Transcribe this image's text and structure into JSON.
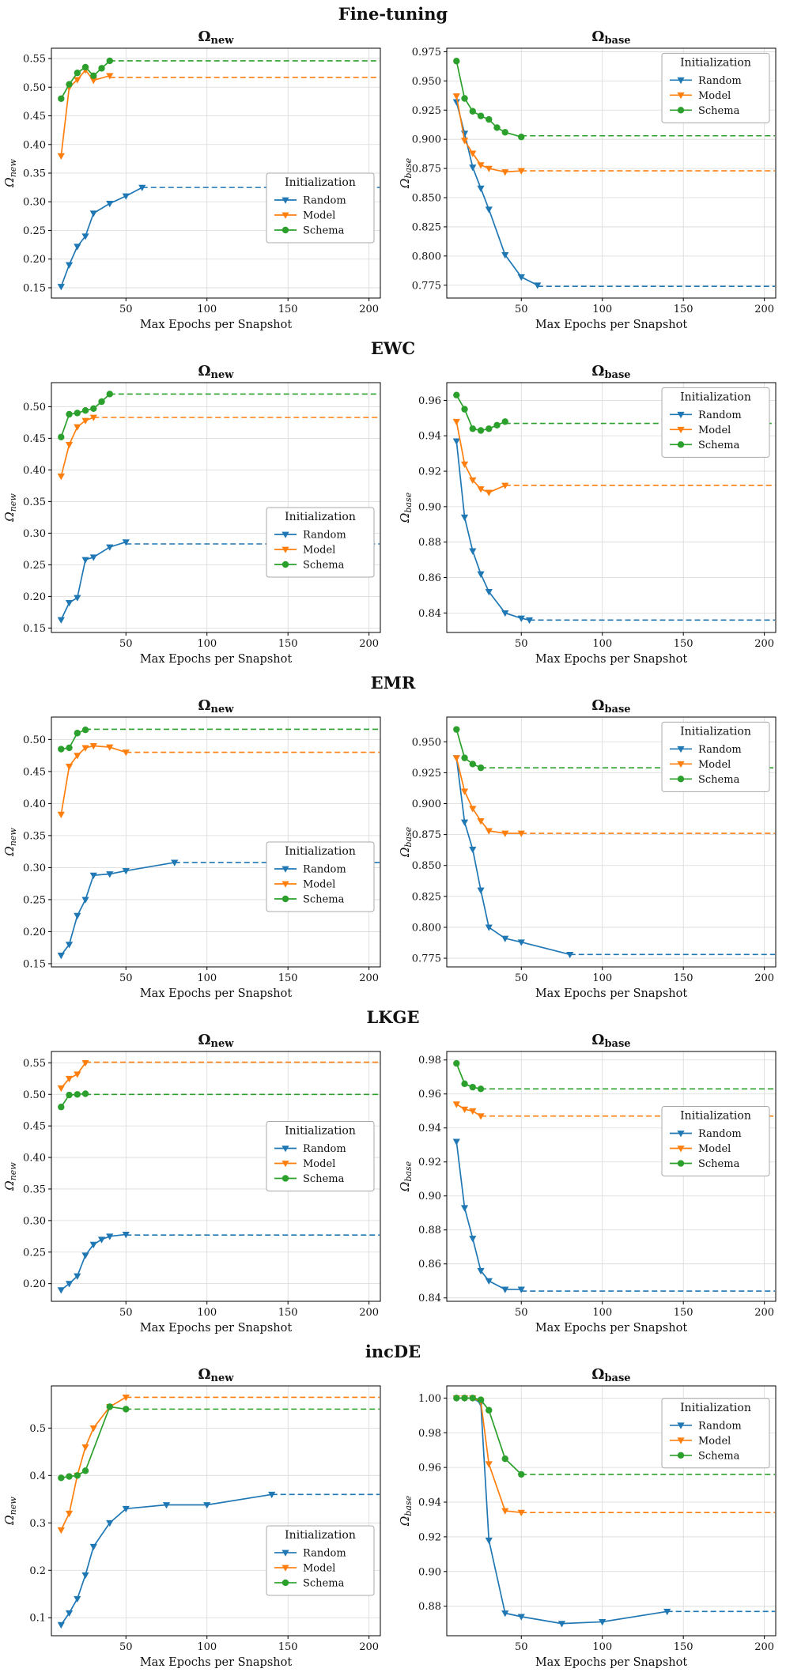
{
  "figure": {
    "background": "#ffffff",
    "xlabel": "Max Epochs per Snapshot",
    "legend_title": "Initialization",
    "xlim": [
      4,
      207
    ],
    "xticks": [
      50,
      100,
      150,
      200
    ]
  },
  "series_style": {
    "Random": {
      "color": "#1f77b4",
      "marker": "triangle-down"
    },
    "Model": {
      "color": "#ff7f0e",
      "marker": "triangle-down"
    },
    "Schema": {
      "color": "#2ca02c",
      "marker": "circle"
    }
  },
  "chart_data": [
    {
      "method": "Fine-tuning",
      "charts": [
        {
          "type": "line",
          "sub": "new",
          "ylim": [
            0.132,
            0.568
          ],
          "ydec": 2,
          "yticks": [
            0.15,
            0.2,
            0.25,
            0.3,
            0.35,
            0.4,
            0.45,
            0.5,
            0.55
          ],
          "legend_y_frac": 0.5,
          "series": [
            {
              "name": "Random",
              "x": [
                10,
                15,
                20,
                25,
                30,
                40,
                50,
                60
              ],
              "y": [
                0.152,
                0.19,
                0.222,
                0.24,
                0.28,
                0.297,
                0.31,
                0.325
              ],
              "final": 0.325
            },
            {
              "name": "Model",
              "x": [
                10,
                15,
                20,
                25,
                30,
                40
              ],
              "y": [
                0.38,
                0.5,
                0.513,
                0.53,
                0.512,
                0.52
              ],
              "final": 0.517
            },
            {
              "name": "Schema",
              "x": [
                10,
                15,
                20,
                25,
                30,
                35,
                40
              ],
              "y": [
                0.48,
                0.505,
                0.525,
                0.535,
                0.52,
                0.533,
                0.546
              ],
              "final": 0.546
            }
          ]
        },
        {
          "type": "line",
          "sub": "base",
          "ylim": [
            0.764,
            0.978
          ],
          "ydec": 3,
          "yticks": [
            0.775,
            0.8,
            0.825,
            0.85,
            0.875,
            0.9,
            0.925,
            0.95,
            0.975
          ],
          "legend_y_frac": 0.02,
          "series": [
            {
              "name": "Random",
              "x": [
                10,
                15,
                20,
                25,
                30,
                40,
                50,
                60
              ],
              "y": [
                0.932,
                0.905,
                0.876,
                0.858,
                0.84,
                0.801,
                0.782,
                0.775
              ],
              "final": 0.774
            },
            {
              "name": "Model",
              "x": [
                10,
                15,
                20,
                25,
                30,
                40,
                50
              ],
              "y": [
                0.937,
                0.899,
                0.888,
                0.878,
                0.875,
                0.872,
                0.873
              ],
              "final": 0.873
            },
            {
              "name": "Schema",
              "x": [
                10,
                15,
                20,
                25,
                30,
                35,
                40,
                50
              ],
              "y": [
                0.967,
                0.935,
                0.924,
                0.92,
                0.917,
                0.91,
                0.906,
                0.902
              ],
              "final": 0.903
            }
          ]
        }
      ]
    },
    {
      "method": "EWC",
      "charts": [
        {
          "type": "line",
          "sub": "new",
          "ylim": [
            0.143,
            0.538
          ],
          "ydec": 2,
          "yticks": [
            0.15,
            0.2,
            0.25,
            0.3,
            0.35,
            0.4,
            0.45,
            0.5
          ],
          "legend_y_frac": 0.5,
          "series": [
            {
              "name": "Random",
              "x": [
                10,
                15,
                20,
                25,
                30,
                40,
                50
              ],
              "y": [
                0.163,
                0.19,
                0.198,
                0.258,
                0.262,
                0.278,
                0.286
              ],
              "final": 0.283
            },
            {
              "name": "Model",
              "x": [
                10,
                15,
                20,
                25,
                30
              ],
              "y": [
                0.39,
                0.44,
                0.468,
                0.478,
                0.483
              ],
              "final": 0.483
            },
            {
              "name": "Schema",
              "x": [
                10,
                15,
                20,
                25,
                30,
                35,
                40
              ],
              "y": [
                0.452,
                0.488,
                0.49,
                0.494,
                0.497,
                0.508,
                0.52
              ],
              "final": 0.52
            }
          ]
        },
        {
          "type": "line",
          "sub": "base",
          "ylim": [
            0.829,
            0.97
          ],
          "ydec": 2,
          "yticks": [
            0.84,
            0.86,
            0.88,
            0.9,
            0.92,
            0.94,
            0.96
          ],
          "legend_y_frac": 0.02,
          "series": [
            {
              "name": "Random",
              "x": [
                10,
                15,
                20,
                25,
                30,
                40,
                50,
                55
              ],
              "y": [
                0.937,
                0.894,
                0.875,
                0.862,
                0.852,
                0.84,
                0.837,
                0.836
              ],
              "final": 0.836
            },
            {
              "name": "Model",
              "x": [
                10,
                15,
                20,
                25,
                30,
                40
              ],
              "y": [
                0.948,
                0.924,
                0.915,
                0.91,
                0.908,
                0.912
              ],
              "final": 0.912
            },
            {
              "name": "Schema",
              "x": [
                10,
                15,
                20,
                25,
                30,
                35,
                40
              ],
              "y": [
                0.963,
                0.955,
                0.944,
                0.943,
                0.944,
                0.946,
                0.948
              ],
              "final": 0.947
            }
          ]
        }
      ]
    },
    {
      "method": "EMR",
      "charts": [
        {
          "type": "line",
          "sub": "new",
          "ylim": [
            0.145,
            0.535
          ],
          "ydec": 2,
          "yticks": [
            0.15,
            0.2,
            0.25,
            0.3,
            0.35,
            0.4,
            0.45,
            0.5
          ],
          "legend_y_frac": 0.5,
          "series": [
            {
              "name": "Random",
              "x": [
                10,
                15,
                20,
                25,
                30,
                40,
                50,
                80
              ],
              "y": [
                0.163,
                0.18,
                0.225,
                0.25,
                0.288,
                0.29,
                0.295,
                0.308
              ],
              "final": 0.308
            },
            {
              "name": "Model",
              "x": [
                10,
                15,
                20,
                25,
                30,
                40,
                50
              ],
              "y": [
                0.383,
                0.458,
                0.475,
                0.487,
                0.49,
                0.488,
                0.48
              ],
              "final": 0.48
            },
            {
              "name": "Schema",
              "x": [
                10,
                15,
                20,
                25
              ],
              "y": [
                0.485,
                0.487,
                0.51,
                0.515
              ],
              "final": 0.516
            }
          ]
        },
        {
          "type": "line",
          "sub": "base",
          "ylim": [
            0.768,
            0.97
          ],
          "ydec": 3,
          "yticks": [
            0.775,
            0.8,
            0.825,
            0.85,
            0.875,
            0.9,
            0.925,
            0.95
          ],
          "legend_y_frac": 0.02,
          "series": [
            {
              "name": "Random",
              "x": [
                10,
                15,
                20,
                25,
                30,
                40,
                50,
                80
              ],
              "y": [
                0.937,
                0.885,
                0.863,
                0.83,
                0.8,
                0.791,
                0.788,
                0.778
              ],
              "final": 0.778
            },
            {
              "name": "Model",
              "x": [
                10,
                15,
                20,
                25,
                30,
                40,
                50
              ],
              "y": [
                0.937,
                0.91,
                0.896,
                0.886,
                0.878,
                0.876,
                0.876
              ],
              "final": 0.876
            },
            {
              "name": "Schema",
              "x": [
                10,
                15,
                20,
                25
              ],
              "y": [
                0.96,
                0.937,
                0.932,
                0.929
              ],
              "final": 0.929
            }
          ]
        }
      ]
    },
    {
      "method": "LKGE",
      "charts": [
        {
          "type": "line",
          "sub": "new",
          "ylim": [
            0.172,
            0.568
          ],
          "ydec": 2,
          "yticks": [
            0.2,
            0.25,
            0.3,
            0.35,
            0.4,
            0.45,
            0.5,
            0.55
          ],
          "legend_y_frac": 0.28,
          "series": [
            {
              "name": "Random",
              "x": [
                10,
                15,
                20,
                25,
                30,
                35,
                40,
                50
              ],
              "y": [
                0.19,
                0.2,
                0.212,
                0.245,
                0.262,
                0.27,
                0.275,
                0.278
              ],
              "final": 0.277
            },
            {
              "name": "Model",
              "x": [
                10,
                15,
                20,
                25
              ],
              "y": [
                0.51,
                0.525,
                0.532,
                0.55
              ],
              "final": 0.551
            },
            {
              "name": "Schema",
              "x": [
                10,
                15,
                20,
                25
              ],
              "y": [
                0.48,
                0.499,
                0.5,
                0.501
              ],
              "final": 0.5
            }
          ]
        },
        {
          "type": "line",
          "sub": "base",
          "ylim": [
            0.838,
            0.985
          ],
          "ydec": 2,
          "yticks": [
            0.84,
            0.86,
            0.88,
            0.9,
            0.92,
            0.94,
            0.96,
            0.98
          ],
          "legend_y_frac": 0.22,
          "series": [
            {
              "name": "Random",
              "x": [
                10,
                15,
                20,
                25,
                30,
                40,
                50
              ],
              "y": [
                0.932,
                0.893,
                0.875,
                0.856,
                0.85,
                0.845,
                0.845
              ],
              "final": 0.844
            },
            {
              "name": "Model",
              "x": [
                10,
                15,
                20,
                25
              ],
              "y": [
                0.954,
                0.951,
                0.95,
                0.947
              ],
              "final": 0.947
            },
            {
              "name": "Schema",
              "x": [
                10,
                15,
                20,
                25
              ],
              "y": [
                0.978,
                0.966,
                0.964,
                0.963
              ],
              "final": 0.963
            }
          ]
        }
      ]
    },
    {
      "method": "incDE",
      "charts": [
        {
          "type": "line",
          "sub": "new",
          "ylim": [
            0.062,
            0.589
          ],
          "ydec": 1,
          "yticks": [
            0.1,
            0.2,
            0.3,
            0.4,
            0.5
          ],
          "legend_y_frac": 0.56,
          "series": [
            {
              "name": "Random",
              "x": [
                10,
                15,
                20,
                25,
                30,
                40,
                50,
                75,
                100,
                140
              ],
              "y": [
                0.085,
                0.11,
                0.14,
                0.19,
                0.25,
                0.3,
                0.33,
                0.338,
                0.338,
                0.36
              ],
              "final": 0.36
            },
            {
              "name": "Model",
              "x": [
                10,
                15,
                20,
                25,
                30,
                40,
                50
              ],
              "y": [
                0.285,
                0.32,
                0.4,
                0.46,
                0.5,
                0.545,
                0.565
              ],
              "final": 0.565
            },
            {
              "name": "Schema",
              "x": [
                10,
                15,
                20,
                25,
                40,
                50
              ],
              "y": [
                0.395,
                0.398,
                0.4,
                0.41,
                0.545,
                0.54
              ],
              "final": 0.54
            }
          ]
        },
        {
          "type": "line",
          "sub": "base",
          "ylim": [
            0.863,
            1.007
          ],
          "ydec": 2,
          "yticks": [
            0.88,
            0.9,
            0.92,
            0.94,
            0.96,
            0.98,
            1.0
          ],
          "legend_y_frac": 0.05,
          "series": [
            {
              "name": "Random",
              "x": [
                10,
                15,
                20,
                25,
                30,
                40,
                50,
                75,
                100,
                140
              ],
              "y": [
                1.0,
                1.0,
                1.0,
                0.997,
                0.918,
                0.876,
                0.874,
                0.87,
                0.871,
                0.877
              ],
              "final": 0.877
            },
            {
              "name": "Model",
              "x": [
                10,
                15,
                20,
                25,
                30,
                40,
                50
              ],
              "y": [
                1.0,
                1.0,
                1.0,
                0.998,
                0.962,
                0.935,
                0.934
              ],
              "final": 0.934
            },
            {
              "name": "Schema",
              "x": [
                10,
                15,
                20,
                25,
                30,
                40,
                50
              ],
              "y": [
                1.0,
                1.0,
                1.0,
                0.999,
                0.993,
                0.965,
                0.956
              ],
              "final": 0.956
            }
          ]
        }
      ]
    }
  ]
}
